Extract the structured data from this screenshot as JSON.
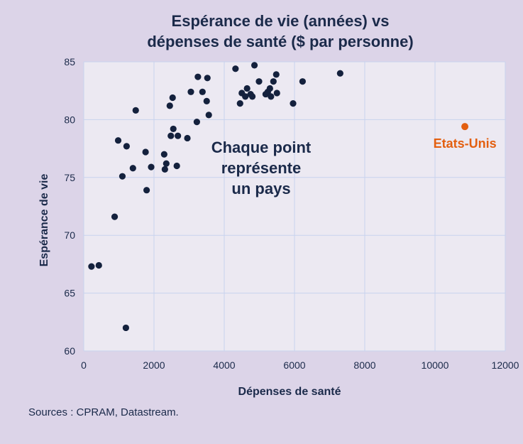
{
  "chart_data": {
    "type": "scatter",
    "title_lines": [
      "Espérance de vie (années) vs",
      "dépenses de santé ($ par personne)"
    ],
    "xlabel": "Dépenses de santé",
    "ylabel": "Espérance de vie",
    "xlim": [
      0,
      12000
    ],
    "ylim": [
      60,
      85
    ],
    "xticks": [
      0,
      2000,
      4000,
      6000,
      8000,
      10000,
      12000
    ],
    "yticks": [
      60,
      65,
      70,
      75,
      80,
      85
    ],
    "grid": true,
    "point_color": "#14213d",
    "highlight_color": "#e35f10",
    "points": [
      {
        "x": 220,
        "y": 67.3
      },
      {
        "x": 430,
        "y": 67.4
      },
      {
        "x": 1200,
        "y": 62.0
      },
      {
        "x": 880,
        "y": 71.6
      },
      {
        "x": 1100,
        "y": 75.1
      },
      {
        "x": 980,
        "y": 78.2
      },
      {
        "x": 1220,
        "y": 77.7
      },
      {
        "x": 1400,
        "y": 75.8
      },
      {
        "x": 1480,
        "y": 80.8
      },
      {
        "x": 1760,
        "y": 77.2
      },
      {
        "x": 1790,
        "y": 73.9
      },
      {
        "x": 1920,
        "y": 75.9
      },
      {
        "x": 2290,
        "y": 77.0
      },
      {
        "x": 2310,
        "y": 75.7
      },
      {
        "x": 2350,
        "y": 76.2
      },
      {
        "x": 2450,
        "y": 81.2
      },
      {
        "x": 2480,
        "y": 78.6
      },
      {
        "x": 2530,
        "y": 81.9
      },
      {
        "x": 2550,
        "y": 79.2
      },
      {
        "x": 2650,
        "y": 76.0
      },
      {
        "x": 2680,
        "y": 78.6
      },
      {
        "x": 2950,
        "y": 78.4
      },
      {
        "x": 3050,
        "y": 82.4
      },
      {
        "x": 3220,
        "y": 79.8
      },
      {
        "x": 3250,
        "y": 83.7
      },
      {
        "x": 3380,
        "y": 82.4
      },
      {
        "x": 3500,
        "y": 81.6
      },
      {
        "x": 3520,
        "y": 83.6
      },
      {
        "x": 3560,
        "y": 80.4
      },
      {
        "x": 4320,
        "y": 84.4
      },
      {
        "x": 4450,
        "y": 81.4
      },
      {
        "x": 4500,
        "y": 82.3
      },
      {
        "x": 4600,
        "y": 82.0
      },
      {
        "x": 4650,
        "y": 82.7
      },
      {
        "x": 4750,
        "y": 82.2
      },
      {
        "x": 4800,
        "y": 82.0
      },
      {
        "x": 4860,
        "y": 84.7
      },
      {
        "x": 4990,
        "y": 83.3
      },
      {
        "x": 5180,
        "y": 82.2
      },
      {
        "x": 5240,
        "y": 82.4
      },
      {
        "x": 5300,
        "y": 82.7
      },
      {
        "x": 5330,
        "y": 82.0
      },
      {
        "x": 5400,
        "y": 83.3
      },
      {
        "x": 5480,
        "y": 83.9
      },
      {
        "x": 5500,
        "y": 82.3
      },
      {
        "x": 5960,
        "y": 81.4
      },
      {
        "x": 6230,
        "y": 83.3
      },
      {
        "x": 7300,
        "y": 84.0
      }
    ],
    "highlight_point": {
      "x": 10850,
      "y": 79.4,
      "label": "Etats-Unis"
    },
    "annotation_lines": [
      "Chaque point",
      "représente",
      "un pays"
    ]
  },
  "source_text": "Sources : CPRAM, Datastream."
}
